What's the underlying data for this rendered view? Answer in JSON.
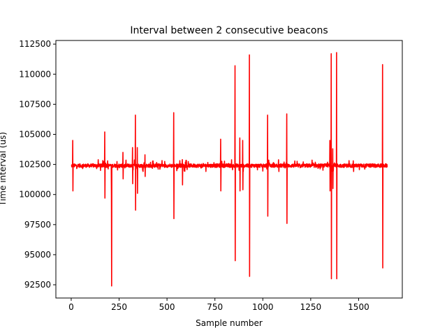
{
  "chart_data": {
    "type": "line",
    "title": "Interval between 2 consecutive beacons",
    "xlabel": "Sample number",
    "ylabel": "Time interval (us)",
    "xlim": [
      -80,
      1728
    ],
    "ylim": [
      91400,
      112800
    ],
    "x_ticks": [
      0,
      250,
      500,
      750,
      1000,
      1250,
      1500
    ],
    "y_ticks": [
      92500,
      95000,
      97500,
      100000,
      102500,
      105000,
      107500,
      110000,
      112500
    ],
    "x_tick_labels": [
      "0",
      "250",
      "500",
      "750",
      "1000",
      "1250",
      "1500"
    ],
    "y_tick_labels": [
      "92500",
      "95000",
      "97500",
      "100000",
      "102500",
      "105000",
      "107500",
      "110000",
      "112500"
    ],
    "grid": false,
    "legend": "none",
    "series": [
      {
        "color": "#ff0000",
        "baseline": 102400,
        "n_samples": 1650,
        "spikes": [
          [
            8,
            104500,
            100300
          ],
          [
            175,
            105200,
            99700
          ],
          [
            210,
            100000,
            92400
          ],
          [
            270,
            103500,
            101300
          ],
          [
            320,
            103900,
            100900
          ],
          [
            335,
            106600,
            98700
          ],
          [
            345,
            103900,
            100100
          ],
          [
            385,
            103300,
            101500
          ],
          [
            535,
            106800,
            98000
          ],
          [
            580,
            102900,
            100800
          ],
          [
            780,
            104600,
            100300
          ],
          [
            855,
            110700,
            94500
          ],
          [
            880,
            104700,
            100300
          ],
          [
            895,
            104500,
            100400
          ],
          [
            930,
            111600,
            93200
          ],
          [
            1025,
            106600,
            98200
          ],
          [
            1125,
            106700,
            97600
          ],
          [
            1350,
            104500,
            100300
          ],
          [
            1357,
            111700,
            93000
          ],
          [
            1365,
            103800,
            100500
          ],
          [
            1385,
            111800,
            93000
          ],
          [
            1625,
            110800,
            93900
          ]
        ]
      }
    ]
  }
}
